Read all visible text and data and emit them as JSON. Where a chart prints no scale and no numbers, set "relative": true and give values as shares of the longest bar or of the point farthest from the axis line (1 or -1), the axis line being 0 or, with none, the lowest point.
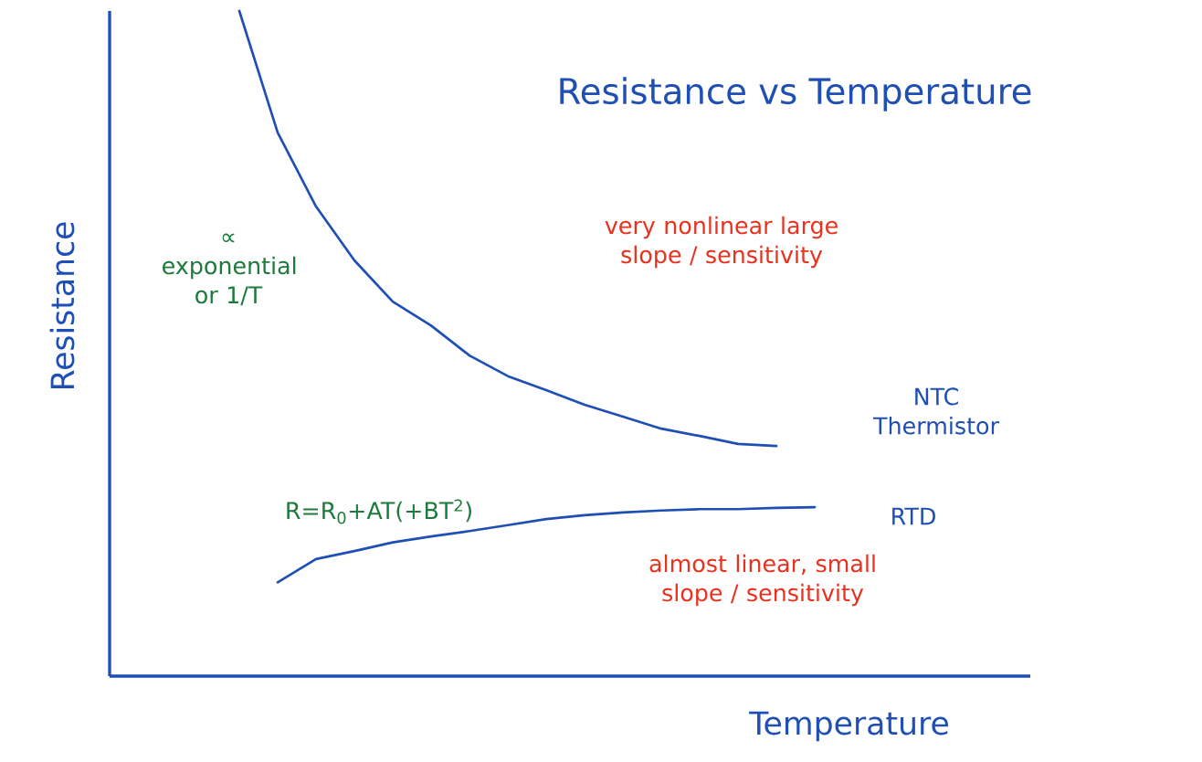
{
  "chart_data": {
    "type": "line",
    "relative": true,
    "title": "Resistance vs Temperature",
    "xlabel": "Temperature",
    "ylabel": "Resistance",
    "categories": [
      null,
      null,
      null,
      null,
      null,
      null,
      null,
      null,
      null,
      null,
      null,
      null,
      null,
      null,
      null,
      null
    ],
    "series": [
      {
        "name": "NTC Thermistor",
        "color": "#1f4fb5",
        "values": [
          1.0,
          0.817,
          0.706,
          0.625,
          0.563,
          0.527,
          0.482,
          0.451,
          0.43,
          0.408,
          0.39,
          0.372,
          0.361,
          0.349,
          0.346,
          null
        ]
      },
      {
        "name": "RTD",
        "color": "#1f4fb5",
        "values": [
          null,
          0.141,
          0.176,
          0.188,
          0.201,
          0.21,
          0.218,
          0.227,
          0.236,
          0.242,
          0.246,
          0.249,
          0.251,
          0.251,
          0.253,
          0.254
        ]
      }
    ],
    "annotations": [
      "∝ exponential or 1/T",
      "very nonlinear large slope / sensitivity",
      "almost linear, small slope / sensitivity",
      "R=R$_{0}$+AT(+BT$^{2}$)"
    ]
  }
}
